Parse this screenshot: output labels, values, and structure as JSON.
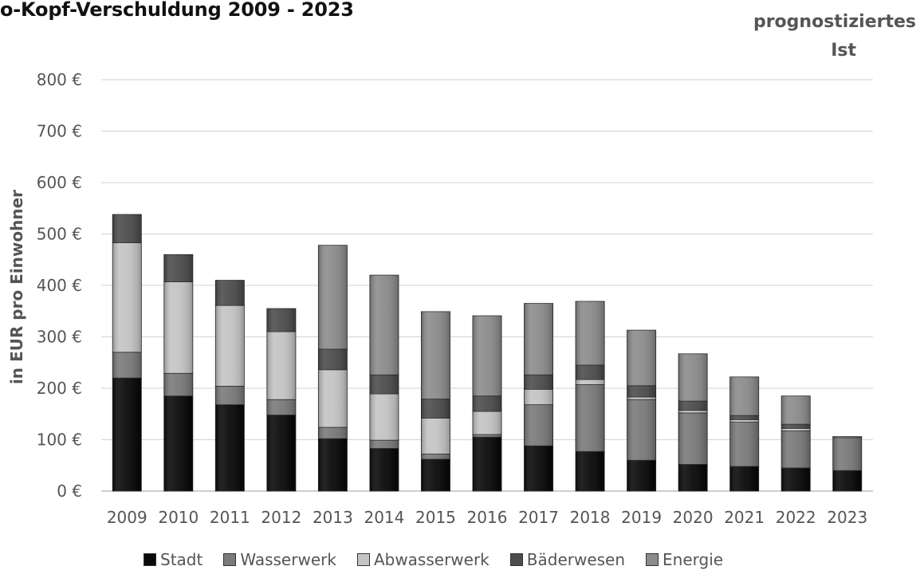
{
  "chart_data": {
    "type": "bar",
    "stacked": true,
    "title": "o-Kopf-Verschuldung 2009 - 2023",
    "annotation": [
      "prognostiziertes",
      "Ist"
    ],
    "ylabel": "in EUR pro Einwohner",
    "ylim": [
      0,
      800
    ],
    "yticks": [
      "0 €",
      "100 €",
      "200 €",
      "300 €",
      "400 €",
      "500 €",
      "600 €",
      "700 €",
      "800 €"
    ],
    "yticks_values": [
      0,
      100,
      200,
      300,
      400,
      500,
      600,
      700,
      800
    ],
    "categories": [
      "2009",
      "2010",
      "2011",
      "2012",
      "2013",
      "2014",
      "2015",
      "2016",
      "2017",
      "2018",
      "2019",
      "2020",
      "2021",
      "2022",
      "2023"
    ],
    "series": [
      {
        "name": "Stadt",
        "color": "#0a0a0a",
        "values": [
          220,
          185,
          168,
          148,
          102,
          83,
          62,
          105,
          88,
          77,
          60,
          52,
          48,
          45,
          40
        ]
      },
      {
        "name": "Wasserwerk",
        "color": "#7a7a7a",
        "values": [
          50,
          44,
          36,
          30,
          22,
          16,
          10,
          5,
          80,
          130,
          118,
          100,
          86,
          72,
          64
        ]
      },
      {
        "name": "Abwasserwerk",
        "color": "#c4c4c4",
        "values": [
          213,
          178,
          157,
          132,
          112,
          90,
          70,
          45,
          30,
          10,
          5,
          5,
          5,
          5,
          0
        ]
      },
      {
        "name": "Bäderwesen",
        "color": "#4d4d4d",
        "values": [
          55,
          53,
          49,
          45,
          40,
          37,
          37,
          30,
          28,
          28,
          22,
          18,
          8,
          8,
          0
        ]
      },
      {
        "name": "Energie",
        "color": "#8c8c8c",
        "values": [
          0,
          0,
          0,
          0,
          202,
          194,
          170,
          156,
          139,
          124,
          108,
          92,
          75,
          55,
          2
        ]
      }
    ],
    "totals": [
      538,
      460,
      410,
      355,
      478,
      420,
      349,
      341,
      365,
      369,
      313,
      267,
      222,
      185,
      106
    ],
    "grid": true,
    "legend_position": "bottom"
  }
}
